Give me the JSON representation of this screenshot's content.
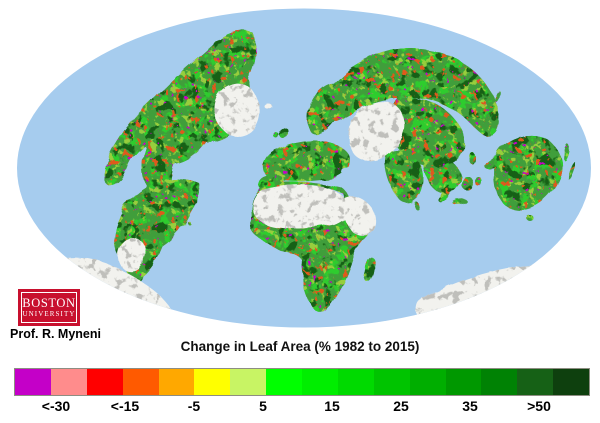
{
  "page": {
    "background": "#FFFFFF"
  },
  "map": {
    "description": "World map (elliptical Hammer projection) of change in leaf area 1982 to 2015; greens show greening, reds/magenta browning, white areas barren deserts and ice",
    "ocean_color": "#A6CCEE",
    "land_green": "#3F9E3A",
    "land_bright_green": "#2ECC2E",
    "land_yellow_green": "#97CE3C",
    "land_dark_green": "#156015",
    "land_orange": "#DE5A1E",
    "land_magenta": "#C800C8",
    "desert_color": "#F2F2EE",
    "desert_shade": "#BFBFBB"
  },
  "logo": {
    "line1": "BOSTON",
    "line2": "UNIVERSITY",
    "background": "#C8102E"
  },
  "credit": "Prof. R. Myneni",
  "legend": {
    "title": "Change in Leaf Area (% 1982 to 2015)",
    "tick_labels": [
      "<-30",
      "<-15",
      "-5",
      "5",
      "15",
      "25",
      "35",
      ">50"
    ],
    "segment_colors": [
      "#C400C8",
      "#FF8C8C",
      "#FF0000",
      "#FF5A00",
      "#FFA800",
      "#FFFF00",
      "#C8F464",
      "#00FF00",
      "#00EE00",
      "#00DA00",
      "#00C400",
      "#00AE00",
      "#009800",
      "#008204",
      "#166116",
      "#0E400E"
    ]
  },
  "chart_data": {
    "type": "heatmap",
    "title": "Change in Leaf Area (% 1982 to 2015)",
    "unit": "percent change 1982 to 2015",
    "scale_tick_labels": [
      "<-30",
      "<-15",
      "-5",
      "5",
      "15",
      "25",
      "35",
      ">50"
    ],
    "scale_colors": [
      "#C400C8",
      "#FF8C8C",
      "#FF0000",
      "#FF5A00",
      "#FFA800",
      "#FFFF00",
      "#C8F464",
      "#00FF00",
      "#00EE00",
      "#00DA00",
      "#00C400",
      "#00AE00",
      "#009800",
      "#008204",
      "#166116",
      "#0E400E"
    ],
    "legend_position": "bottom"
  }
}
